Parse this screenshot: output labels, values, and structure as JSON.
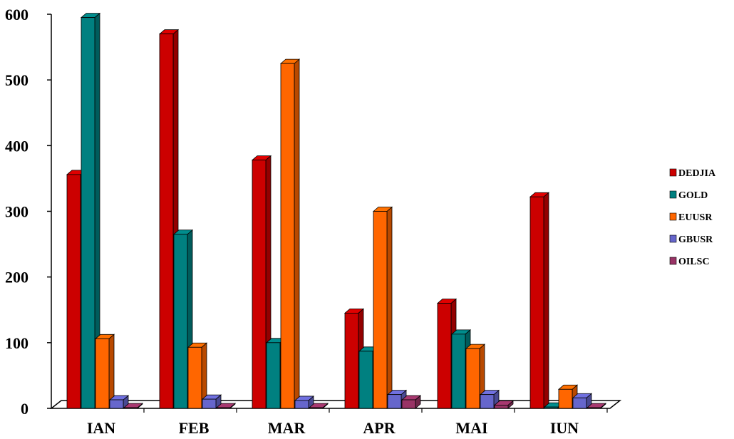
{
  "chart_data": {
    "type": "bar",
    "title": "",
    "xlabel": "",
    "ylabel": "",
    "ylim": [
      0,
      600
    ],
    "yticks": [
      "0",
      "100",
      "200",
      "300",
      "400",
      "500",
      "600"
    ],
    "categories": [
      "IAN",
      "FEB",
      "MAR",
      "APR",
      "MAI",
      "IUN"
    ],
    "legend_position": "right",
    "grid": false,
    "series": [
      {
        "name": "DEDJIA",
        "color": "#CC0000",
        "values": [
          356,
          570,
          378,
          145,
          160,
          322
        ]
      },
      {
        "name": "GOLD",
        "color": "#008080",
        "values": [
          595,
          265,
          100,
          87,
          113,
          2
        ]
      },
      {
        "name": "EUUSR",
        "color": "#FF6600",
        "values": [
          106,
          93,
          525,
          300,
          91,
          29
        ]
      },
      {
        "name": "GBUSR",
        "color": "#6666CC",
        "values": [
          13,
          14,
          12,
          21,
          21,
          16
        ]
      },
      {
        "name": "OILSC",
        "color": "#993366",
        "values": [
          1,
          1,
          1,
          13,
          5,
          1
        ]
      }
    ]
  }
}
